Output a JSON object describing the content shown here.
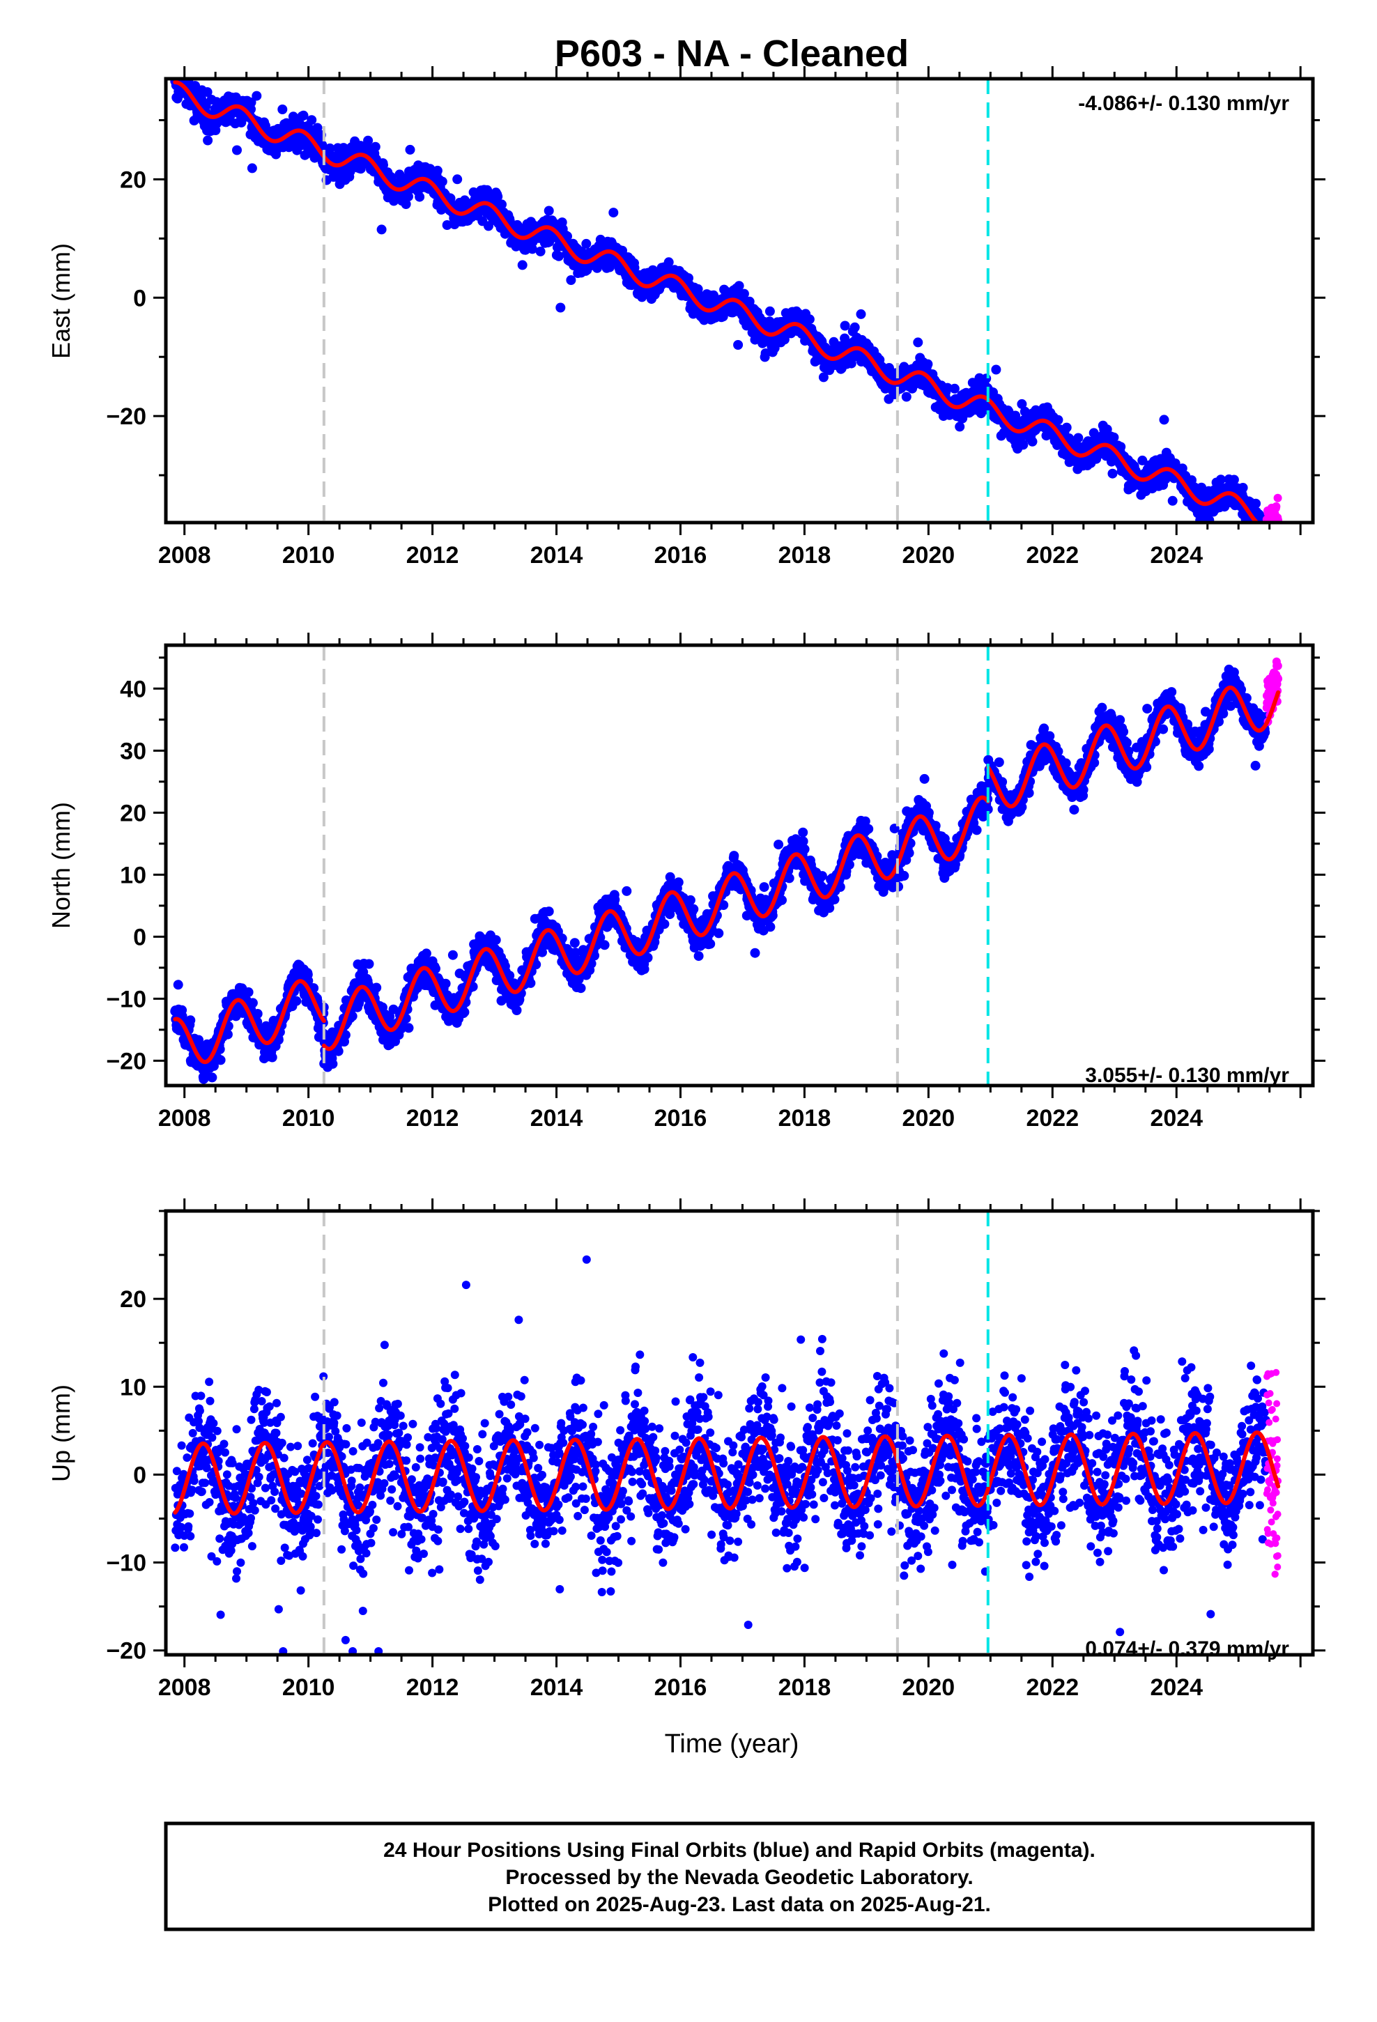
{
  "title": "P603  - NA - Cleaned",
  "colors": {
    "final_points": "#0000ff",
    "rapid_points": "#ff00ff",
    "model_line": "#ff0000",
    "equipment_change": "#c8c8c8",
    "earthquake_line": "#00e5e5",
    "frame": "#000000"
  },
  "chart_data": [
    {
      "type": "scatter",
      "component": "east",
      "ylabel": "East (mm)",
      "xlabel": "",
      "xlim": [
        2007.7,
        2026.2
      ],
      "ylim": [
        -38,
        37
      ],
      "xticks": [
        2008,
        2010,
        2012,
        2014,
        2016,
        2018,
        2020,
        2022,
        2024
      ],
      "xtick_labels": [
        "2008",
        "2010",
        "2012",
        "2014",
        "2016",
        "2018",
        "2020",
        "2022",
        "2024"
      ],
      "yticks": [
        -20,
        0,
        20
      ],
      "ytick_labels": [
        "−20",
        "0",
        "20"
      ],
      "rate_text": "-4.086+/- 0.130 mm/yr",
      "rate_position": "top-right",
      "start_year": 2007.85,
      "final_end_year": 2025.45,
      "rapid_end_year": 2025.64,
      "model": {
        "start_value": 34.7,
        "rate_mm_per_yr": -4.086,
        "annual_amplitude": 1.8,
        "annual_phase": 0.65,
        "scatter_mm": 1.2
      },
      "offsets": [],
      "equipment_changes": [
        2010.25,
        2019.5
      ],
      "earthquakes": [
        2020.96
      ]
    },
    {
      "type": "scatter",
      "component": "north",
      "ylabel": "North (mm)",
      "xlabel": "",
      "xlim": [
        2007.7,
        2026.2
      ],
      "ylim": [
        -24,
        47
      ],
      "xticks": [
        2008,
        2010,
        2012,
        2014,
        2016,
        2018,
        2020,
        2022,
        2024
      ],
      "xtick_labels": [
        "2008",
        "2010",
        "2012",
        "2014",
        "2016",
        "2018",
        "2020",
        "2022",
        "2024"
      ],
      "yticks": [
        -20,
        -10,
        0,
        10,
        20,
        30,
        40
      ],
      "ytick_labels": [
        "−20",
        "−10",
        "0",
        "10",
        "20",
        "30",
        "40"
      ],
      "rate_text": "3.055+/- 0.130 mm/yr",
      "rate_position": "bottom-right",
      "start_year": 2007.85,
      "final_end_year": 2025.45,
      "rapid_end_year": 2025.64,
      "model": {
        "start_value": -17.5,
        "rate_mm_per_yr": 3.055,
        "annual_amplitude": 4.2,
        "annual_phase": 0.6,
        "scatter_mm": 1.3
      },
      "offsets": [
        {
          "year": 2010.25,
          "size": -4.0
        },
        {
          "year": 2020.96,
          "size": 5.5
        }
      ],
      "equipment_changes": [
        2010.25,
        2019.5
      ],
      "earthquakes": [
        2020.96
      ]
    },
    {
      "type": "scatter",
      "component": "up",
      "ylabel": "Up (mm)",
      "xlabel": "Time (year)",
      "xlim": [
        2007.7,
        2026.2
      ],
      "ylim": [
        -20.5,
        30
      ],
      "xticks": [
        2008,
        2010,
        2012,
        2014,
        2016,
        2018,
        2020,
        2022,
        2024
      ],
      "xtick_labels": [
        "2008",
        "2010",
        "2012",
        "2014",
        "2016",
        "2018",
        "2020",
        "2022",
        "2024"
      ],
      "yticks": [
        -20,
        -10,
        0,
        10,
        20
      ],
      "ytick_labels": [
        "−20",
        "−10",
        "0",
        "10",
        "20"
      ],
      "rate_text": "0.074+/- 0.379 mm/yr",
      "rate_position": "bottom-right",
      "start_year": 2007.85,
      "final_end_year": 2025.45,
      "rapid_end_year": 2025.64,
      "model": {
        "start_value": -0.5,
        "rate_mm_per_yr": 0.074,
        "annual_amplitude": 4.0,
        "annual_phase": 0.05,
        "scatter_mm": 3.5
      },
      "offsets": [],
      "equipment_changes": [
        2010.25,
        2019.5
      ],
      "earthquakes": [
        2020.96
      ]
    }
  ],
  "footer": {
    "line1": "24 Hour Positions Using Final Orbits (blue) and Rapid Orbits (magenta).",
    "line2": "Processed by the Nevada Geodetic Laboratory.",
    "line3": "Plotted on 2025-Aug-23. Last data on 2025-Aug-21."
  }
}
